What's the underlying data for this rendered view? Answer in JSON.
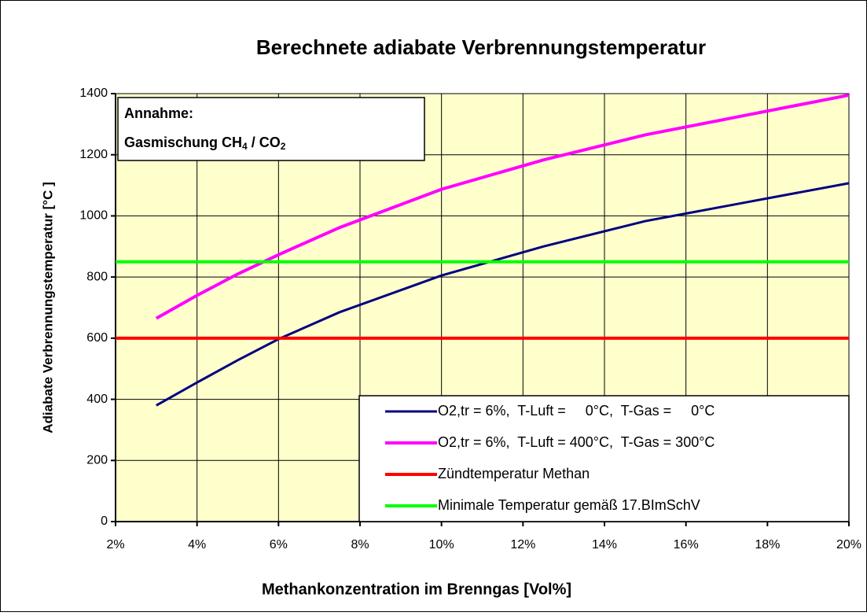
{
  "chart_data": {
    "type": "line",
    "title": "Berechnete adiabate Verbrennungstemperatur",
    "x_label": "Methankonzentration im Brenngas [Vol%]",
    "y_label": "Adiabate Verbrennungstemperatur [°C ]",
    "annotation_title": "Annahme:",
    "annotation_parts": [
      "Gasmischung CH",
      "4",
      " / CO",
      "2"
    ],
    "xlim": [
      2,
      20
    ],
    "xticks": [
      {
        "value": 2,
        "label": "2%"
      },
      {
        "value": 4,
        "label": "4%"
      },
      {
        "value": 6,
        "label": "6%"
      },
      {
        "value": 8,
        "label": "8%"
      },
      {
        "value": 10,
        "label": "10%"
      },
      {
        "value": 12,
        "label": "12%"
      },
      {
        "value": 14,
        "label": "14%"
      },
      {
        "value": 16,
        "label": "16%"
      },
      {
        "value": 18,
        "label": "18%"
      },
      {
        "value": 20,
        "label": "20%"
      }
    ],
    "ylim": [
      0,
      1400
    ],
    "yticks": [
      0,
      200,
      400,
      600,
      800,
      1000,
      1200,
      1400
    ],
    "grid": true,
    "legend": "lower right",
    "series": [
      {
        "name": "O2,tr = 6%,  T-Luft =     0°C,  T-Gas =     0°C",
        "color": "#000080",
        "x": [
          3,
          4,
          5,
          6,
          7.5,
          10,
          12.5,
          15,
          17.5,
          20
        ],
        "values": [
          380,
          455,
          528,
          597,
          685,
          805,
          900,
          983,
          1045,
          1107
        ]
      },
      {
        "name": "O2,tr = 6%,  T-Luft = 400°C,  T-Gas = 300°C",
        "color": "#ff00ff",
        "x": [
          3,
          4,
          5,
          6,
          7.5,
          10,
          12.5,
          15,
          17.5,
          20
        ],
        "values": [
          665,
          740,
          810,
          873,
          962,
          1087,
          1183,
          1265,
          1330,
          1395
        ]
      },
      {
        "name": "Zündtemperatur Methan",
        "color": "#ff0000",
        "x": [
          2,
          20
        ],
        "values": [
          600,
          600
        ]
      },
      {
        "name": "Minimale Temperatur gemäß 17.BImSchV",
        "color": "#00ff00",
        "x": [
          2,
          20
        ],
        "values": [
          850,
          850
        ]
      }
    ]
  }
}
